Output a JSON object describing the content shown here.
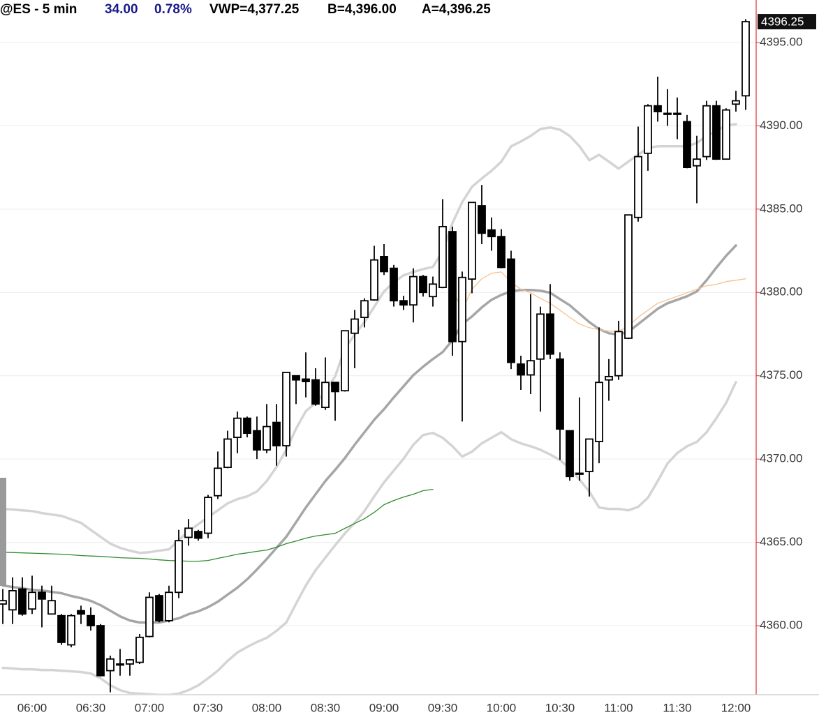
{
  "chart_data": {
    "type": "candlestick",
    "title": "@ES - 5 min",
    "change": "34.00",
    "change_pct": "0.78%",
    "vwap": "VWP=4,377.25",
    "bid": "B=4,396.00",
    "ask": "A=4,396.25",
    "last_price": {
      "value": 4396.25,
      "label": "4396.25"
    },
    "up_color": "#ffffff",
    "down_color": "#000000",
    "grid": true,
    "ylim": [
      4355.9,
      4397.55
    ],
    "yticks": [
      {
        "value": 4360,
        "label": "4360.00"
      },
      {
        "value": 4365,
        "label": "4365.00"
      },
      {
        "value": 4370,
        "label": "4370.00"
      },
      {
        "value": 4375,
        "label": "4375.00"
      },
      {
        "value": 4380,
        "label": "4380.00"
      },
      {
        "value": 4385,
        "label": "4385.00"
      },
      {
        "value": 4390,
        "label": "4390.00"
      },
      {
        "value": 4395,
        "label": "4395.00"
      }
    ],
    "categories": [
      null,
      null,
      null,
      "06:00",
      null,
      null,
      null,
      null,
      null,
      "06:30",
      null,
      null,
      null,
      null,
      null,
      "07:00",
      null,
      null,
      null,
      null,
      null,
      "07:30",
      null,
      null,
      null,
      null,
      null,
      "08:00",
      null,
      null,
      null,
      null,
      null,
      "08:30",
      null,
      null,
      null,
      null,
      null,
      "09:00",
      null,
      null,
      null,
      null,
      null,
      "09:30",
      null,
      null,
      null,
      null,
      null,
      "10:00",
      null,
      null,
      null,
      null,
      null,
      "10:30",
      null,
      null,
      null,
      null,
      null,
      "11:00",
      null,
      null,
      null,
      null,
      null,
      "11:30",
      null,
      null,
      null,
      null,
      null,
      "12:00",
      null
    ],
    "open": [
      4361.3,
      4360.95,
      4362.2,
      4361,
      4362,
      4360.7,
      4360.6,
      4358.85,
      4360.9,
      4360.6,
      4360,
      4357.3,
      4357.7,
      4357.7,
      4357.8,
      4359.35,
      4361.8,
      4360.3,
      4362,
      4365.3,
      4365.65,
      4365.55,
      4367.8,
      4369.5,
      4371.3,
      4372.45,
      4371.7,
      4370.55,
      4372.2,
      4370.8,
      4375,
      4374.8,
      4374.75,
      4373.1,
      4374.6,
      4374.1,
      4377.55,
      4378.5,
      4379.55,
      4382.15,
      4381.45,
      4379.5,
      4379.25,
      4380.95,
      4379.75,
      4380.3,
      4383.65,
      4377.05,
      4380.8,
      4385.2,
      4383.75,
      4383.35,
      4382,
      4375.7,
      4375.05,
      4376,
      4378.7,
      4376,
      4371.7,
      4369.15,
      4369.25,
      4371.05,
      4374.75,
      4375,
      4377.25,
      4384.5,
      4388.35,
      4391.2,
      4390.75,
      4390.75,
      4390.25,
      4387.6,
      4388.15,
      4391.2,
      4388,
      4391.3,
      4391.8
    ],
    "high": [
      4362.2,
      4362.9,
      4362.9,
      4363,
      4362.4,
      4362.4,
      4360.7,
      4360.7,
      4361.2,
      4361.1,
      4360.1,
      4358.2,
      4358.6,
      4358,
      4359.5,
      4362,
      4361.9,
      4362.4,
      4365.75,
      4366.4,
      4365.75,
      4367.85,
      4370.45,
      4371.7,
      4372.85,
      4372.55,
      4372.55,
      4373.3,
      4373.3,
      4375.2,
      4375,
      4376.4,
      4375.45,
      4376.1,
      4374.6,
      4377.7,
      4378.95,
      4379.65,
      4382.8,
      4382.9,
      4381.65,
      4379.8,
      4381.45,
      4381.05,
      4380.95,
      4385.6,
      4383.95,
      4381.25,
      4385.4,
      4386.45,
      4384.5,
      4383.8,
      4382.5,
      4376.2,
      4379.9,
      4379.15,
      4380.5,
      4376.4,
      4371.7,
      4373.7,
      4371.2,
      4377.9,
      4376,
      4378.3,
      4384.65,
      4389.95,
      4391.3,
      4392.95,
      4392.2,
      4391.7,
      4390.65,
      4389.4,
      4391.5,
      4391.5,
      4391.05,
      4392.1,
      4396.4
    ],
    "low": [
      4360.1,
      4360.1,
      4360.6,
      4360.7,
      4359.9,
      4360.7,
      4358.85,
      4358.7,
      4360.1,
      4359.7,
      4356.95,
      4356,
      4357,
      4357,
      4357.7,
      4359.3,
      4360.2,
      4360.2,
      4361.65,
      4364.8,
      4365.1,
      4365.25,
      4367.6,
      4369.45,
      4370.35,
      4371.3,
      4370,
      4370.35,
      4369.6,
      4370.15,
      4373.3,
      4373.7,
      4373.2,
      4372.95,
      4372.3,
      4374.05,
      4375.45,
      4377.9,
      4379.5,
      4381.05,
      4379.15,
      4378.95,
      4378.2,
      4379.75,
      4379.15,
      4380.25,
      4376.2,
      4372.25,
      4379.95,
      4382.9,
      4382.5,
      4381.45,
      4375.4,
      4374.15,
      4373.9,
      4372.85,
      4376,
      4369.95,
      4368.7,
      4368.7,
      4367.75,
      4369.75,
      4373.5,
      4374.75,
      4377.2,
      4384.25,
      4387.3,
      4390.25,
      4390,
      4389.2,
      4387.45,
      4385.35,
      4387.95,
      4387.95,
      4388,
      4390.85,
      4390.95
    ],
    "close": [
      4361.5,
      4362.1,
      4360.7,
      4362,
      4361.6,
      4361.5,
      4359,
      4360.6,
      4360.7,
      4360,
      4357,
      4358,
      4357.7,
      4357.95,
      4359.3,
      4361.7,
      4360.3,
      4362,
      4365.1,
      4365.85,
      4365.25,
      4367.7,
      4369.45,
      4371.2,
      4372.45,
      4371.55,
      4370.55,
      4371.95,
      4370.8,
      4375.2,
      4374.75,
      4374.65,
      4373.3,
      4374.6,
      4374.05,
      4377.7,
      4378.4,
      4379.5,
      4381.95,
      4381.25,
      4379.5,
      4379.25,
      4380.95,
      4380,
      4380.5,
      4383.95,
      4377.05,
      4380.9,
      4385.4,
      4383.55,
      4383.35,
      4381.5,
      4375.8,
      4375.05,
      4375.9,
      4378.7,
      4376.3,
      4371.8,
      4368.95,
      4369.15,
      4371.2,
      4374.6,
      4374.95,
      4377.65,
      4384.65,
      4388.15,
      4391.2,
      4390.85,
      4390.75,
      4390.7,
      4387.5,
      4388,
      4391.2,
      4388,
      4390.95,
      4391.5,
      4396.25
    ],
    "lines": [
      {
        "color": "#d4d4d4",
        "values": [
          4367.01,
          4366.97,
          4366.92,
          4366.88,
          4366.76,
          4366.67,
          4366.59,
          4366.38,
          4366.17,
          4365.75,
          4365.33,
          4364.92,
          4364.67,
          4364.5,
          4364.37,
          4364.41,
          4364.5,
          4364.58,
          4365.13,
          4365.67,
          4366.09,
          4366.51,
          4366.92,
          4367.34,
          4367.59,
          4367.76,
          4368.05,
          4368.68,
          4369.52,
          4370.56,
          4371.82,
          4372.87,
          4373.37,
          4374.04,
          4374.96,
          4376.63,
          4377.47,
          4378.22,
          4379.14,
          4380.06,
          4380.61,
          4381.03,
          4381.23,
          4381.4,
          4381.53,
          4382.49,
          4384.16,
          4385.42,
          4386.34,
          4386.84,
          4387.3,
          4387.85,
          4388.77,
          4389.06,
          4389.39,
          4389.81,
          4389.9,
          4389.77,
          4389.39,
          4388.77,
          4387.93,
          4388.26,
          4387.85,
          4387.43,
          4387.85,
          4388.26,
          4388.68,
          4388.77,
          4388.77,
          4388.77,
          4388.77,
          4388.97,
          4389.39,
          4389.69,
          4390.02,
          4390.1,
          null
        ]
      },
      {
        "color": "#a6a6a6",
        "values": [
          4362.41,
          4362.32,
          4362.24,
          4362.15,
          4362.11,
          4362.03,
          4361.95,
          4361.78,
          4361.65,
          4361.49,
          4361.23,
          4360.9,
          4360.56,
          4360.31,
          4360.19,
          4360.19,
          4360.19,
          4360.31,
          4360.44,
          4360.69,
          4360.86,
          4361.11,
          4361.44,
          4361.86,
          4362.28,
          4362.78,
          4363.37,
          4364,
          4364.67,
          4365.33,
          4366.21,
          4367.09,
          4367.89,
          4368.68,
          4369.35,
          4370.06,
          4370.86,
          4371.61,
          4372.36,
          4372.99,
          4373.7,
          4374.37,
          4375.04,
          4375.54,
          4376,
          4376.42,
          4377.13,
          4378.1,
          4378.56,
          4379.1,
          4379.56,
          4379.85,
          4380.06,
          4380.15,
          4380.15,
          4380.1,
          4379.98,
          4379.6,
          4379.23,
          4378.72,
          4378.22,
          4377.8,
          4377.55,
          4377.47,
          4377.64,
          4378.1,
          4378.56,
          4379.02,
          4379.35,
          4379.56,
          4379.77,
          4380.06,
          4380.73,
          4381.49,
          4382.2,
          4382.82,
          null
        ]
      },
      {
        "color": "#d4d4d4",
        "values": [
          4357.47,
          4357.43,
          4357.38,
          4357.38,
          4357.34,
          4357.34,
          4357.3,
          4357.26,
          4357.22,
          4357.13,
          4356.84,
          4356.42,
          4356.13,
          4355.96,
          4355.92,
          4355.88,
          4355.84,
          4355.84,
          4355.92,
          4356.13,
          4356.42,
          4356.84,
          4357.3,
          4357.89,
          4358.39,
          4358.72,
          4359.02,
          4359.27,
          4359.69,
          4360.19,
          4361.32,
          4362.41,
          4363.33,
          4364.08,
          4364.83,
          4365.54,
          4366.17,
          4366.88,
          4367.76,
          4368.6,
          4369.31,
          4370.02,
          4370.86,
          4371.44,
          4371.57,
          4371.28,
          4370.77,
          4370.15,
          4370.44,
          4370.94,
          4371.28,
          4371.61,
          4371.19,
          4370.94,
          4370.77,
          4370.56,
          4370.27,
          4369.94,
          4369.44,
          4368.77,
          4368.05,
          4367.09,
          4367.01,
          4367.01,
          4366.92,
          4367.13,
          4367.68,
          4368.68,
          4369.73,
          4370.36,
          4370.77,
          4371.03,
          4371.61,
          4372.45,
          4373.37,
          4374.62,
          null
        ]
      },
      {
        "color": "#2e8b2e",
        "values": [
          4364.41,
          4364.39,
          4364.37,
          4364.35,
          4364.33,
          4364.31,
          4364.29,
          4364.25,
          4364.21,
          4364.18,
          4364.16,
          4364.12,
          4364.08,
          4364.06,
          4364.04,
          4364,
          4363.95,
          4363.91,
          4363.89,
          4363.87,
          4363.87,
          4363.91,
          4364.04,
          4364.16,
          4364.29,
          4364.37,
          4364.46,
          4364.54,
          4364.71,
          4364.92,
          4365.08,
          4365.25,
          4365.38,
          4365.46,
          4365.54,
          4365.84,
          4366.13,
          4366.42,
          4366.8,
          4367.26,
          4367.51,
          4367.72,
          4367.89,
          4368.1,
          4368.18,
          null,
          null,
          null,
          null,
          null,
          null,
          null,
          null,
          null,
          null,
          null,
          null,
          null,
          null,
          null,
          null,
          null,
          null,
          null,
          null,
          null,
          null,
          null,
          null,
          null,
          null,
          null,
          null,
          null,
          null,
          null,
          null
        ]
      },
      {
        "color": "#f6c28f",
        "values": [
          null,
          null,
          null,
          null,
          null,
          null,
          null,
          null,
          null,
          null,
          null,
          null,
          null,
          null,
          null,
          null,
          null,
          null,
          null,
          null,
          null,
          null,
          null,
          null,
          null,
          null,
          null,
          null,
          null,
          null,
          null,
          null,
          null,
          null,
          null,
          null,
          null,
          null,
          null,
          null,
          null,
          null,
          null,
          null,
          null,
          null,
          4380.19,
          4378.93,
          4380.19,
          4380.82,
          4381.15,
          4381.23,
          4380.61,
          4380.19,
          4379.98,
          4379.64,
          4379.35,
          4378.93,
          4378.51,
          4378.1,
          4377.89,
          4377.76,
          4377.68,
          4377.68,
          4377.97,
          4378.51,
          4378.93,
          4379.35,
          4379.56,
          4379.77,
          4379.98,
          4380.19,
          4380.4,
          4380.48,
          4380.65,
          4380.73,
          4380.82
        ]
      }
    ]
  }
}
